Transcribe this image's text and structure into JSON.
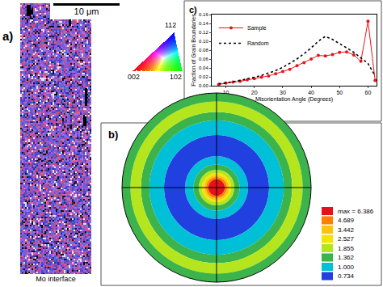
{
  "chart_data": [
    {
      "type": "line",
      "annotations": [
        "c)"
      ],
      "x_label": "Misorientation Angle (Degrees)",
      "y_label": "Fraction of Grain Boundaries",
      "xlim": [
        5,
        63
      ],
      "xticks": [
        10,
        20,
        30,
        40,
        50,
        60
      ],
      "ylim": [
        0,
        0.16
      ],
      "yticks": [
        {
          "value": 0,
          "label": "0.00"
        },
        0.02,
        0.04,
        0.06,
        0.08,
        {
          "value": 0.1,
          "label": "0.10"
        },
        0.12,
        0.14,
        0.16
      ],
      "x": [
        7.5,
        10,
        12.5,
        15,
        17.5,
        20,
        22.5,
        25,
        27.5,
        30,
        32.5,
        35,
        37.5,
        40,
        42.5,
        45,
        47.5,
        50,
        52.5,
        55,
        57.5,
        60,
        62.5
      ],
      "series": [
        {
          "name": "Sample",
          "color": "#e8141b",
          "marker": "circle",
          "line_style": "solid",
          "values": [
            0.003,
            0.006,
            0.008,
            0.01,
            0.013,
            0.016,
            0.019,
            0.022,
            0.027,
            0.032,
            0.037,
            0.045,
            0.052,
            0.06,
            0.068,
            0.067,
            0.07,
            0.075,
            0.076,
            0.069,
            0.055,
            0.145,
            0.012
          ]
        },
        {
          "name": "Random",
          "color": "#000000",
          "marker": "none",
          "line_style": "dot",
          "values": [
            0.004,
            0.006,
            0.009,
            0.012,
            0.015,
            0.019,
            0.023,
            0.028,
            0.034,
            0.041,
            0.05,
            0.06,
            0.072,
            0.085,
            0.1,
            0.111,
            0.104,
            0.095,
            0.085,
            0.075,
            0.063,
            0.05,
            0.022
          ]
        }
      ],
      "legend": "top left",
      "grid": false
    },
    {
      "type": "pole_figure",
      "annotations": [
        "b)"
      ],
      "rlim": [
        0,
        90
      ],
      "tick_labels": false,
      "bands": {
        "from": [
          0,
          8,
          10,
          12,
          14,
          17,
          22,
          30,
          50,
          64,
          72,
          82
        ],
        "to": [
          8,
          10,
          12,
          14,
          17,
          22,
          30,
          50,
          64,
          72,
          82,
          90
        ],
        "level": [
          6.386,
          4.689,
          3.442,
          2.527,
          1.855,
          1.362,
          1.0,
          0.734,
          1.0,
          1.362,
          1.855,
          1.362
        ]
      },
      "color_bar": {
        "ticks": [
          {
            "value": 6.386,
            "label": "max = 6.386"
          },
          4.689,
          3.442,
          2.527,
          1.855,
          1.362,
          {
            "value": 1.0,
            "label": "1.000"
          },
          0.734
        ],
        "colors": [
          "#e3121b",
          "#ff7f00",
          "#ffc20e",
          "#f2e600",
          "#b5e61d",
          "#3cb44b",
          "#00c0d8",
          "#2040e0"
        ]
      }
    }
  ],
  "ebsd_map": {
    "annotations": [
      "a)"
    ],
    "scale_bar": "10 μm",
    "bottom_label": "Mo interface",
    "ipf_key": {
      "top": "112",
      "left": "002",
      "right": "102"
    }
  }
}
